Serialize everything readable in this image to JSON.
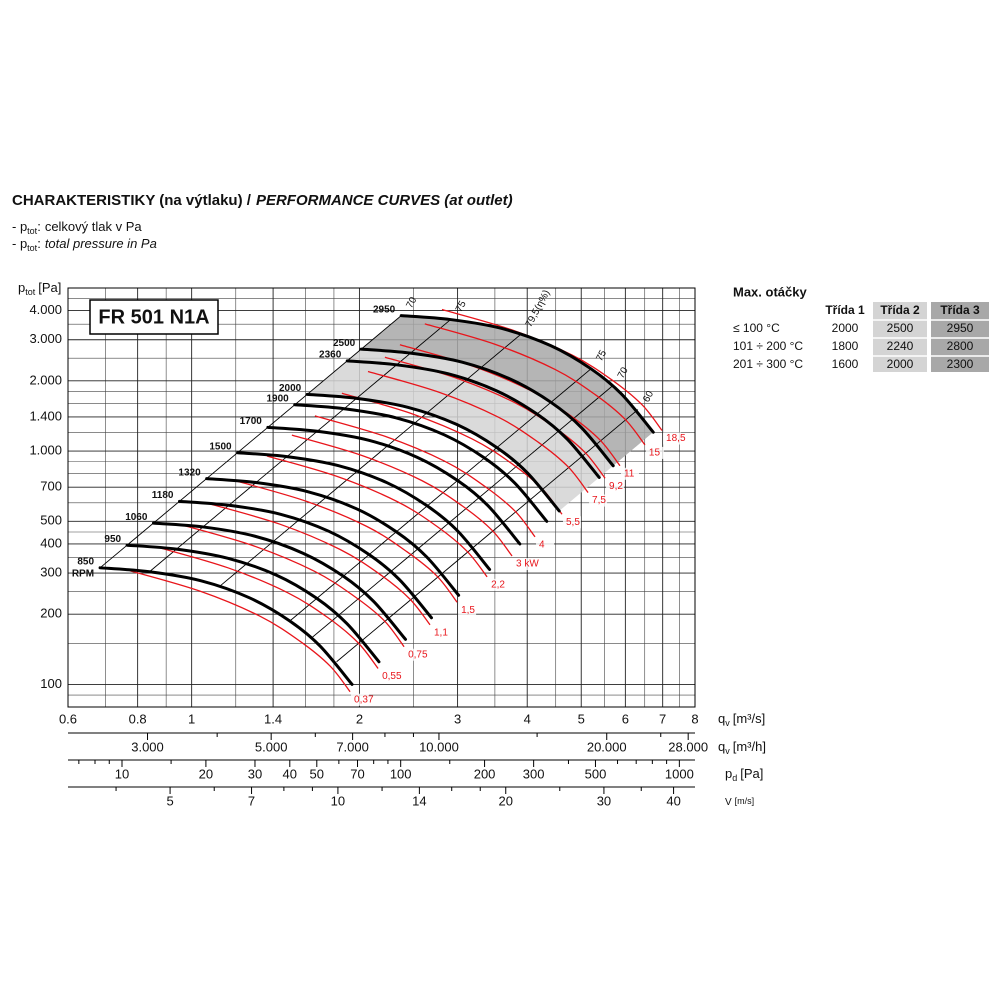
{
  "header": {
    "title": "CHARAKTERISTIKY (na výtlaku) /",
    "title_italic": "PERFORMANCE CURVES (at outlet)"
  },
  "notes": [
    {
      "prefix": "- p",
      "sub": "tot",
      "sep": ":",
      "text": "celkový tlak v Pa"
    },
    {
      "prefix": "- p",
      "sub": "tot",
      "sep": ":",
      "text": "total pressure in Pa"
    }
  ],
  "table": {
    "title": "Max. otáčky",
    "columns": [
      "Třída 1",
      "Třída 2",
      "Třída 3"
    ],
    "rows": [
      [
        "≤ 100 °C",
        2000,
        2500,
        2950
      ],
      [
        "101 ÷ 200 °C",
        1800,
        2240,
        2800
      ],
      [
        "201 ÷ 300 °C",
        1600,
        2000,
        2300
      ]
    ],
    "colors": [
      "#ffffff",
      "#d4d4d4",
      "#a8a8a8"
    ]
  },
  "chart_data": {
    "type": "fan-curves",
    "model": "FR 501 N1A",
    "ylabel": {
      "main": "p",
      "sub": "tot",
      "unit": "[Pa]"
    },
    "xlabel": {
      "main": "q",
      "sub": "v",
      "unit": "[m³/s]"
    },
    "xscale": "log",
    "yscale": "log",
    "xlim": [
      0.6,
      8
    ],
    "ylim": [
      80,
      5000
    ],
    "xticks": [
      0.6,
      0.8,
      1,
      1.4,
      2,
      3,
      4,
      5,
      6,
      7,
      8
    ],
    "yticks": [
      {
        "value": 4000,
        "label": "4.000"
      },
      {
        "value": 3000,
        "label": "3.000"
      },
      {
        "value": 2000,
        "label": "2.000"
      },
      {
        "value": 1400,
        "label": "1.400"
      },
      {
        "value": 1000,
        "label": "1.000"
      },
      700,
      500,
      400,
      300,
      200,
      100
    ],
    "xminor": [
      0.7,
      0.9,
      1.2,
      1.6,
      1.8,
      2.5,
      3.5,
      4.5,
      5.5,
      6.5,
      7.5
    ],
    "yminor": [
      90,
      150,
      250,
      350,
      450,
      600,
      800,
      900,
      1200,
      1600,
      1800,
      2500,
      3500,
      4500
    ],
    "grid": true,
    "secondary_axes": [
      {
        "label": {
          "main": "q",
          "sub": "v",
          "unit": "[m³/h]"
        },
        "xlim": [
          2160,
          28800
        ],
        "xticks": [
          {
            "value": 3000,
            "label": "3.000"
          },
          {
            "value": 5000,
            "label": "5.000"
          },
          {
            "value": 7000,
            "label": "7.000"
          },
          {
            "value": 10000,
            "label": "10.000"
          },
          {
            "value": 20000,
            "label": "20.000"
          },
          {
            "value": 28000,
            "label": "28.000"
          }
        ],
        "xminor": [
          4000,
          6000,
          8000,
          9000,
          15000,
          25000
        ]
      },
      {
        "label": {
          "main": "p",
          "sub": "d",
          "unit": "[Pa]"
        },
        "xlim": [
          6.4,
          1138
        ],
        "xticks": [
          10,
          20,
          30,
          40,
          50,
          70,
          100,
          200,
          300,
          500,
          1000
        ],
        "xminor": [
          7,
          8,
          9,
          15,
          60,
          80,
          90,
          150,
          400,
          600,
          700,
          800,
          900
        ]
      },
      {
        "label": {
          "main": "V",
          "unit": "[m/s]"
        },
        "xlim": [
          3.28,
          43.7
        ],
        "xticks": [
          5,
          7,
          10,
          14,
          20,
          30,
          40
        ],
        "xminor": [
          4,
          6,
          8,
          9,
          12,
          16,
          18,
          25,
          35
        ]
      }
    ],
    "rpm_label": "RPM",
    "series": [
      {
        "name": "850",
        "color": "#000000",
        "x": [
          0.685,
          0.84,
          1.04,
          1.27,
          1.5,
          1.7,
          1.94
        ],
        "values": [
          316,
          304,
          278,
          235,
          187,
          146,
          100
        ]
      },
      {
        "name": "950",
        "color": "#000000",
        "x": [
          0.766,
          0.939,
          1.162,
          1.419,
          1.676,
          1.9,
          2.168
        ],
        "values": [
          395,
          380,
          347,
          294,
          234,
          182,
          125
        ]
      },
      {
        "name": "1060",
        "color": "#000000",
        "x": [
          0.854,
          1.048,
          1.297,
          1.584,
          1.871,
          2.12,
          2.419
        ],
        "values": [
          491,
          473,
          432,
          365,
          291,
          227,
          156
        ]
      },
      {
        "name": "1180",
        "color": "#000000",
        "x": [
          0.951,
          1.166,
          1.444,
          1.763,
          2.082,
          2.36,
          2.693
        ],
        "values": [
          609,
          586,
          536,
          453,
          360,
          281,
          193
        ]
      },
      {
        "name": "1320",
        "color": "#000000",
        "x": [
          1.064,
          1.304,
          1.615,
          1.972,
          2.329,
          2.64,
          3.013
        ],
        "values": [
          762,
          733,
          670,
          567,
          451,
          352,
          241
        ]
      },
      {
        "name": "1500",
        "color": "#000000",
        "x": [
          1.209,
          1.482,
          1.835,
          2.241,
          2.647,
          3,
          3.424
        ],
        "values": [
          984,
          947,
          866,
          732,
          582,
          455,
          311
        ]
      },
      {
        "name": "1700",
        "color": "#000000",
        "x": [
          1.37,
          1.68,
          2.08,
          2.54,
          3,
          3.4,
          3.88
        ],
        "values": [
          1264,
          1216,
          1112,
          940,
          748,
          584,
          400
        ]
      },
      {
        "name": "1900",
        "color": "#000000",
        "x": [
          1.531,
          1.878,
          2.325,
          2.839,
          3.353,
          3.8,
          4.336
        ],
        "values": [
          1579,
          1519,
          1389,
          1174,
          934,
          729,
          500
        ]
      },
      {
        "name": "2000",
        "color": "#000000",
        "x": [
          1.612,
          1.976,
          2.447,
          2.988,
          3.529,
          4,
          4.565
        ],
        "values": [
          1749,
          1683,
          1539,
          1301,
          1035,
          808,
          554
        ]
      },
      {
        "name": "2360",
        "color": "#000000",
        "x": [
          1.902,
          2.332,
          2.888,
          3.526,
          4.165,
          4.72,
          5.386
        ],
        "values": [
          2436,
          2343,
          2143,
          1812,
          1442,
          1125,
          771
        ]
      },
      {
        "name": "2500",
        "color": "#000000",
        "x": [
          2.015,
          2.471,
          3.059,
          3.735,
          4.412,
          5,
          5.706
        ],
        "values": [
          2734,
          2630,
          2405,
          2033,
          1618,
          1263,
          865
        ]
      },
      {
        "name": "2950",
        "color": "#000000",
        "x": [
          2.377,
          2.915,
          3.609,
          4.408,
          5.206,
          5.9,
          6.733
        ],
        "values": [
          3806,
          3662,
          3349,
          2831,
          2252,
          1759,
          1205
        ]
      }
    ],
    "power_color": "#e8151b",
    "power_series": [
      {
        "value": 0.37,
        "label": "0,37",
        "x": [
          0.775,
          1.035,
          1.326,
          1.565,
          1.771,
          1.924
        ],
        "values": [
          307,
          251,
          196,
          153,
          120,
          93
        ]
      },
      {
        "value": 0.55,
        "label": "0,55",
        "x": [
          0.87,
          1.162,
          1.488,
          1.757,
          1.988,
          2.16
        ],
        "values": [
          387,
          316,
          247,
          193,
          151,
          117
        ]
      },
      {
        "value": 0.75,
        "label": "0,75",
        "x": [
          0.969,
          1.294,
          1.658,
          1.956,
          2.214,
          2.405
        ],
        "values": [
          480,
          392,
          306,
          239,
          188,
          145
        ]
      },
      {
        "value": 1.1,
        "label": "1,1",
        "x": [
          1.078,
          1.44,
          1.845,
          2.178,
          2.464,
          2.677
        ],
        "values": [
          594,
          486,
          379,
          296,
          232,
          180
        ]
      },
      {
        "value": 1.5,
        "label": "1,5",
        "x": [
          1.206,
          1.61,
          2.063,
          2.435,
          2.756,
          2.994
        ],
        "values": [
          743,
          608,
          475,
          370,
          291,
          225
        ]
      },
      {
        "value": 2.2,
        "label": "2,2",
        "x": [
          1.365,
          1.823,
          2.336,
          2.757,
          3.12,
          3.389
        ],
        "values": [
          953,
          779,
          608,
          475,
          372,
          289
        ]
      },
      {
        "value": 3,
        "label": "3 kW",
        "x": [
          1.513,
          2.021,
          2.589,
          3.056,
          3.458,
          3.757
        ],
        "values": [
          1171,
          957,
          747,
          583,
          458,
          355
        ]
      },
      {
        "value": 4,
        "label": "4",
        "x": [
          1.664,
          2.222,
          2.847,
          3.36,
          3.803,
          4.131
        ],
        "values": [
          1415,
          1157,
          904,
          705,
          553,
          429
        ]
      },
      {
        "value": 5.5,
        "label": "5,5",
        "x": [
          1.86,
          2.484,
          3.183,
          3.757,
          4.251,
          4.618
        ],
        "values": [
          1769,
          1446,
          1129,
          882,
          691,
          536
        ]
      },
      {
        "value": 7.5,
        "label": "7,5",
        "x": [
          2.072,
          2.767,
          3.544,
          4.183,
          4.734,
          5.143
        ],
        "values": [
          2193,
          1793,
          1400,
          1093,
          857,
          664
        ]
      },
      {
        "value": 9.2,
        "label": "9,2",
        "x": [
          2.222,
          2.968,
          3.802,
          4.488,
          5.078,
          5.517
        ],
        "values": [
          2524,
          2064,
          1612,
          1258,
          987,
          765
        ]
      },
      {
        "value": 11,
        "label": "11",
        "x": [
          2.364,
          3.157,
          4.044,
          4.773,
          5.402,
          5.868
        ],
        "values": [
          2856,
          2335,
          1823,
          1423,
          1116,
          865
        ]
      },
      {
        "value": 15,
        "label": "15",
        "x": [
          2.62,
          3.5,
          4.483,
          5.292,
          5.988,
          6.505
        ],
        "values": [
          3510,
          2870,
          2241,
          1749,
          1372,
          1063
        ]
      },
      {
        "value": 18.5,
        "label": "18,5",
        "x": [
          2.813,
          3.756,
          4.812,
          5.68,
          6.427,
          6.982
        ],
        "values": [
          4043,
          3306,
          2581,
          2015,
          1580,
          1225
        ]
      }
    ],
    "efficiency_lines": [
      {
        "value": 70,
        "x": [
          0.685,
          2.377
        ],
        "values": [
          316,
          3806
        ]
      },
      {
        "value": 75,
        "x": [
          0.84,
          2.915
        ],
        "values": [
          304,
          3662
        ]
      },
      {
        "value": 79.5,
        "label": "79,5(η%)",
        "x": [
          1.12,
          3.89
        ],
        "values": [
          262,
          3156
        ]
      },
      {
        "value": 75,
        "x": [
          1.5,
          5.206
        ],
        "values": [
          187,
          2252
        ]
      },
      {
        "value": 70,
        "x": [
          1.64,
          5.69
        ],
        "values": [
          158,
          1903
        ]
      },
      {
        "value": 60,
        "x": [
          1.82,
          6.32
        ],
        "values": [
          125,
          1506
        ]
      }
    ]
  }
}
